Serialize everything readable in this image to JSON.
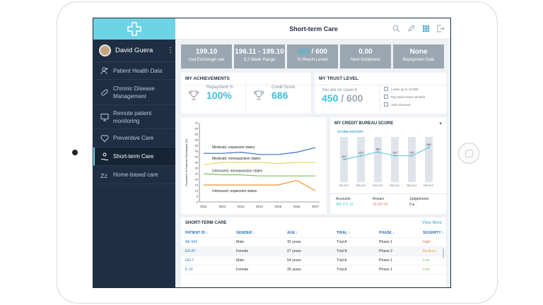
{
  "app": {
    "page_title": "Short-term Care",
    "user_name": "David Guera",
    "kebab": "⋮"
  },
  "sidebar": {
    "items": [
      {
        "label": "Patient Health Data",
        "icon": "person-plus-icon"
      },
      {
        "label": "Chronic Disease Management",
        "icon": "bandage-icon"
      },
      {
        "label": "Remote patient monitoring",
        "icon": "monitor-icon"
      },
      {
        "label": "Preventive Care",
        "icon": "heart-icon"
      },
      {
        "label": "Short-term Care",
        "icon": "care-icon"
      },
      {
        "label": "Home-based care",
        "icon": "sleep-icon"
      }
    ]
  },
  "stats": [
    {
      "value": "199.10",
      "label": "Usd Exchange rate"
    },
    {
      "value": "196.11 - 199.10",
      "label": "5.2 Week Range"
    },
    {
      "value_highlight": "450",
      "value_rest": " / 600",
      "label": "To Reach Levels"
    },
    {
      "value": "0.00",
      "label": "Next Instalment"
    },
    {
      "value": "None",
      "label": "Repayment Date"
    }
  ],
  "achievements": {
    "title": "MY ACHIEVEMENTS",
    "repayment_label": "Repayment %",
    "repayment_value": "100%",
    "credit_label": "Credit Score",
    "credit_value": "686"
  },
  "trust": {
    "title": "MY TRUST LEVEL",
    "level_text": "You are on Level 4",
    "current": "450",
    "sep_total": " / 600",
    "items": [
      "Loans up to 12,000",
      "Pay Back Overs Months",
      "10% Discount"
    ]
  },
  "chart_data": [
    {
      "type": "line",
      "ylabel": "Proportion of Patients Discharged (%)",
      "x": [
        2011,
        2012,
        2013,
        2014,
        2015,
        2016,
        2017
      ],
      "ylim": [
        0,
        70
      ],
      "yticks": [
        0,
        5,
        10,
        15,
        20,
        25,
        30,
        35,
        40,
        45,
        50,
        55,
        60,
        65,
        70
      ],
      "series": [
        {
          "name": "Medicaid, expansion states",
          "color": "#3d6fb8",
          "values": [
            43,
            43,
            44,
            42,
            42,
            44,
            48
          ]
        },
        {
          "name": "Medicaid, nonexpansion states",
          "color": "#e9d56a",
          "values": [
            33,
            35,
            35,
            35,
            34,
            35,
            35
          ]
        },
        {
          "name": "Uninsured, nonexpansion states",
          "color": "#7bc05a",
          "values": [
            25,
            24,
            24,
            23,
            23,
            23,
            23
          ]
        },
        {
          "name": "Uninsured, expansion states",
          "color": "#f0902c",
          "values": [
            15,
            15,
            15,
            15,
            15,
            19,
            10
          ]
        }
      ]
    },
    {
      "type": "bar",
      "title": "MY CREDIT BUREAU SCORE",
      "subtitle": "SCORE HISTORY",
      "categories": [
        "FEB 2017",
        "FEB 2017",
        "FEB 2017",
        "FEB 2017",
        "FEB 2017",
        "FEB 2017"
      ],
      "values": [
        670,
        675,
        680,
        675,
        675,
        686
      ],
      "data_labels": [
        "670",
        "675",
        "680",
        "675",
        "675",
        "686"
      ],
      "ylim": [
        640,
        700
      ]
    }
  ],
  "credit": {
    "accounts_label": "Accounts",
    "accounts_value": "382 271.37",
    "arrears_label": "Arrears",
    "arrears_value": "15 927.97",
    "judgements_label": "Judgements",
    "judgements_value": "0 ●",
    "menu": "▾"
  },
  "table": {
    "title": "SHORT-TERM CARE",
    "view_more": "View More",
    "headers": [
      "PATIENT ID ↕",
      "GENDER ↕",
      "AGE ↕",
      "TRIAL ↕",
      "PHASE ↕",
      "SEVERITY ↕"
    ],
    "rows": [
      {
        "id": "AE-541",
        "gender": "Male",
        "age": "32 years",
        "trial": "Trial A",
        "phase": "Phase 1",
        "severity": "High",
        "sev_color": "#e2735b"
      },
      {
        "id": "ED-87",
        "gender": "Female",
        "age": "27 years",
        "trial": "Trial B",
        "phase": "Phase 2",
        "severity": "Medium",
        "sev_color": "#f0a43a"
      },
      {
        "id": "GD-7",
        "gender": "Male",
        "age": "54 years",
        "trial": "Trial A",
        "phase": "Phase 1",
        "severity": "Low",
        "sev_color": "#7bc05a"
      },
      {
        "id": "F-10",
        "gender": "Female",
        "age": "35 years",
        "trial": "Trial A",
        "phase": "Phase 1",
        "severity": "Low",
        "sev_color": "#7bc05a"
      }
    ]
  }
}
